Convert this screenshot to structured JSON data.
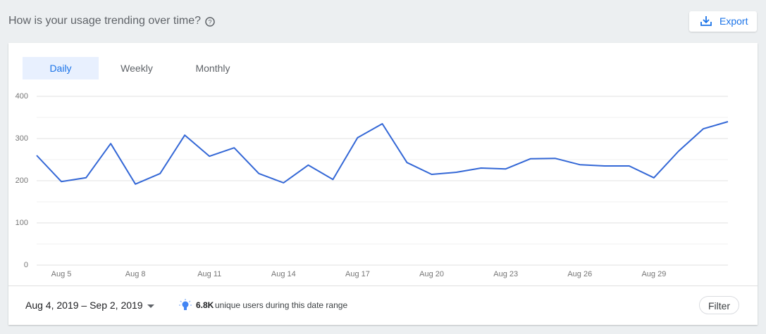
{
  "header": {
    "title": "How is your usage trending over time?",
    "export": "Export"
  },
  "tabs": [
    "Daily",
    "Weekly",
    "Monthly"
  ],
  "chart_data": {
    "type": "line",
    "x": [
      null,
      "Aug 5",
      null,
      null,
      "Aug 8",
      null,
      null,
      "Aug 11",
      null,
      null,
      "Aug 14",
      null,
      null,
      "Aug 17",
      null,
      null,
      "Aug 20",
      null,
      null,
      "Aug 23",
      null,
      null,
      "Aug 26",
      null,
      null,
      "Aug 29",
      null,
      null,
      null
    ],
    "series": [
      {
        "color": "#3367d6",
        "values": [
          260,
          198,
          207,
          288,
          192,
          217,
          308,
          258,
          278,
          217,
          195,
          237,
          203,
          302,
          335,
          243,
          215,
          220,
          230,
          228,
          252,
          253,
          238,
          235,
          235,
          207,
          270,
          323,
          340
        ]
      }
    ],
    "ylim": [
      0,
      400
    ],
    "yticks": [
      0,
      100,
      200,
      300,
      400
    ],
    "minor_yticks": [
      50,
      150,
      250,
      350
    ],
    "grid": true
  },
  "footer": {
    "date_range": "Aug 4, 2019 – Sep 2, 2019",
    "users_count": "6.8K",
    "users_text": "unique users during this date range",
    "filter": "Filter"
  }
}
